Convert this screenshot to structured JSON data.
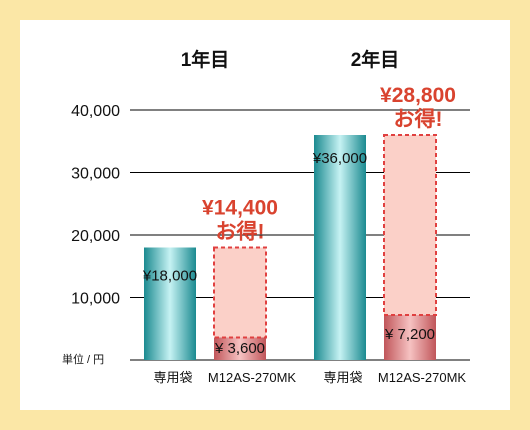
{
  "chart_data": {
    "type": "bar",
    "unit_label": "単位 / 円",
    "ylim": [
      0,
      40000
    ],
    "yticks": [
      10000,
      20000,
      30000,
      40000
    ],
    "ytick_labels": [
      "10,000",
      "20,000",
      "30,000",
      "40,000"
    ],
    "grid": true,
    "groups": [
      {
        "title": "1年目",
        "bars": [
          {
            "category": "専用袋",
            "value": 18000,
            "label": "¥18,000"
          },
          {
            "category": "M12AS-270MK",
            "value": 3600,
            "label": "¥ 3,600"
          }
        ],
        "savings": {
          "value": 14400,
          "label": "¥14,400",
          "sublabel": "お得!"
        }
      },
      {
        "title": "2年目",
        "bars": [
          {
            "category": "専用袋",
            "value": 36000,
            "label": "¥36,000"
          },
          {
            "category": "M12AS-270MK",
            "value": 7200,
            "label": "¥ 7,200"
          }
        ],
        "savings": {
          "value": 28800,
          "label": "¥28,800",
          "sublabel": "お得!"
        }
      }
    ]
  },
  "colors": {
    "frame": "#fbe7a6",
    "teal_dark": "#1f8f95",
    "teal_light": "#bfeff0",
    "red_dark": "#c45a5e",
    "red_light": "#f0b3b3",
    "savings_fill": "#fbd0c8",
    "savings_border": "#e04040",
    "savings_text": "#d9432f"
  }
}
